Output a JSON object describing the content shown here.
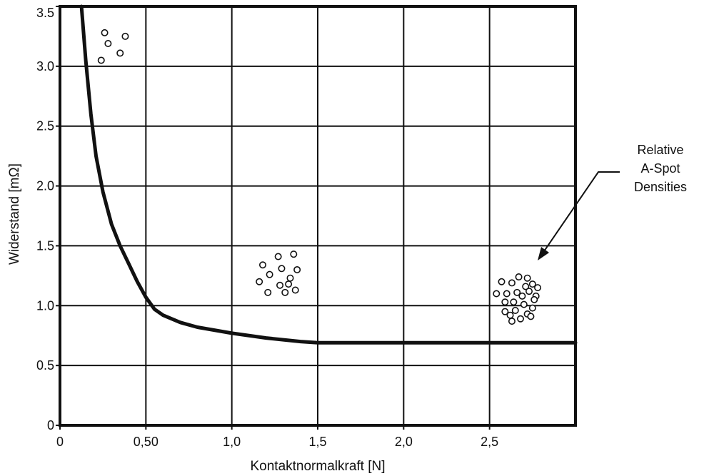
{
  "chart_data": {
    "type": "line",
    "title": "",
    "xlabel": "Kontaktnormalkraft [N]",
    "ylabel": "Widerstand [mΩ]",
    "xlim": [
      0,
      3.0
    ],
    "ylim": [
      0,
      3.5
    ],
    "grid": true,
    "x_tick_labels": [
      {
        "value": 0,
        "label": "0"
      },
      {
        "value": 0.5,
        "label": "0,50"
      },
      {
        "value": 1.0,
        "label": "1,0"
      },
      {
        "value": 1.5,
        "label": "1,5"
      },
      {
        "value": 2.0,
        "label": "2,0"
      },
      {
        "value": 2.5,
        "label": "2,5"
      }
    ],
    "y_tick_labels": [
      {
        "value": 0,
        "label": "0"
      },
      {
        "value": 0.5,
        "label": "0.5"
      },
      {
        "value": 1.0,
        "label": "1.0"
      },
      {
        "value": 1.5,
        "label": "1.5"
      },
      {
        "value": 2.0,
        "label": "2.0"
      },
      {
        "value": 2.5,
        "label": "2.5"
      },
      {
        "value": 3.0,
        "label": "3.0"
      },
      {
        "value": 3.5,
        "label": "3.5"
      }
    ],
    "series": [
      {
        "x": [
          0.125,
          0.15,
          0.18,
          0.21,
          0.25,
          0.3,
          0.35,
          0.4,
          0.45,
          0.5,
          0.55,
          0.6,
          0.7,
          0.8,
          1.0,
          1.2,
          1.4,
          1.5,
          1.8,
          2.0,
          2.5,
          3.0
        ],
        "y": [
          3.5,
          3.05,
          2.6,
          2.25,
          1.95,
          1.68,
          1.5,
          1.35,
          1.2,
          1.07,
          0.97,
          0.92,
          0.86,
          0.82,
          0.77,
          0.73,
          0.7,
          0.69,
          0.69,
          0.69,
          0.69,
          0.69
        ]
      }
    ],
    "annotations": [
      {
        "lines": [
          "Relative",
          "A-Spot",
          "Densities"
        ]
      }
    ],
    "a_spot_clusters": [
      {
        "points": [
          [
            0.26,
            3.28
          ],
          [
            0.38,
            3.25
          ],
          [
            0.28,
            3.19
          ],
          [
            0.35,
            3.11
          ],
          [
            0.24,
            3.05
          ]
        ]
      },
      {
        "points": [
          [
            1.36,
            1.43
          ],
          [
            1.27,
            1.41
          ],
          [
            1.18,
            1.34
          ],
          [
            1.29,
            1.31
          ],
          [
            1.38,
            1.3
          ],
          [
            1.22,
            1.26
          ],
          [
            1.34,
            1.23
          ],
          [
            1.16,
            1.2
          ],
          [
            1.28,
            1.17
          ],
          [
            1.33,
            1.18
          ],
          [
            1.21,
            1.11
          ],
          [
            1.31,
            1.11
          ],
          [
            1.37,
            1.13
          ]
        ]
      },
      {
        "points": [
          [
            2.67,
            1.24
          ],
          [
            2.72,
            1.23
          ],
          [
            2.57,
            1.2
          ],
          [
            2.63,
            1.19
          ],
          [
            2.75,
            1.18
          ],
          [
            2.78,
            1.15
          ],
          [
            2.71,
            1.16
          ],
          [
            2.6,
            1.1
          ],
          [
            2.66,
            1.11
          ],
          [
            2.73,
            1.12
          ],
          [
            2.77,
            1.08
          ],
          [
            2.54,
            1.1
          ],
          [
            2.69,
            1.08
          ],
          [
            2.76,
            1.05
          ],
          [
            2.59,
            1.03
          ],
          [
            2.64,
            1.03
          ],
          [
            2.7,
            1.01
          ],
          [
            2.75,
            0.98
          ],
          [
            2.59,
            0.95
          ],
          [
            2.65,
            0.96
          ],
          [
            2.72,
            0.93
          ],
          [
            2.62,
            0.92
          ],
          [
            2.68,
            0.89
          ],
          [
            2.74,
            0.91
          ],
          [
            2.63,
            0.87
          ]
        ]
      }
    ]
  }
}
